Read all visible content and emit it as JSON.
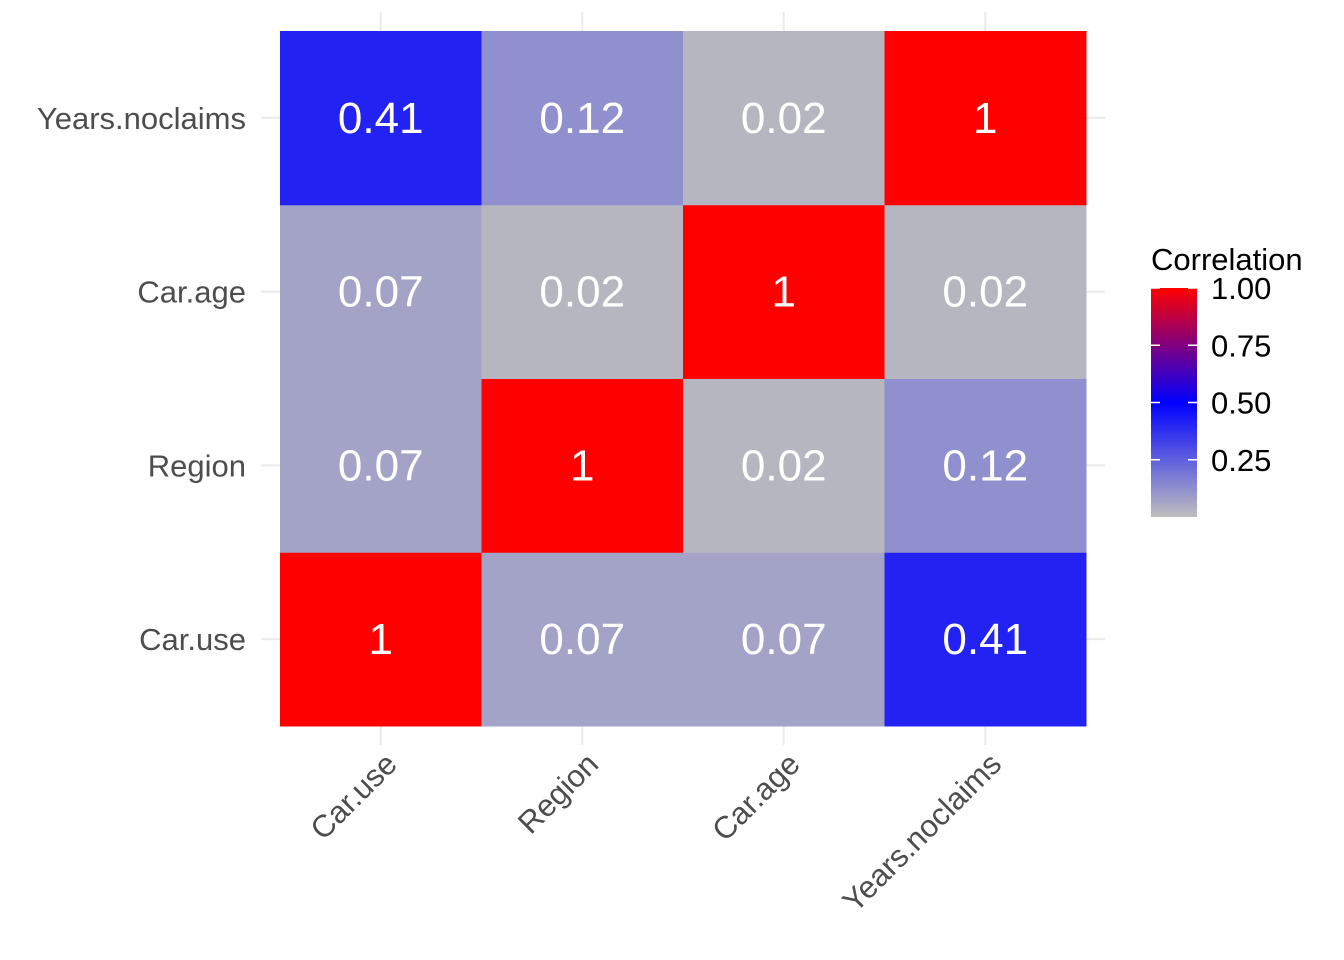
{
  "chart_data": {
    "type": "heatmap",
    "x_categories": [
      "Car.use",
      "Region",
      "Car.age",
      "Years.noclaims"
    ],
    "y_categories": [
      "Car.use",
      "Region",
      "Car.age",
      "Years.noclaims"
    ],
    "matrix": [
      [
        1,
        0.07,
        0.07,
        0.41
      ],
      [
        0.07,
        1,
        0.02,
        0.12
      ],
      [
        0.07,
        0.02,
        1,
        0.02
      ],
      [
        0.41,
        0.12,
        0.02,
        1
      ]
    ],
    "cell_labels": [
      [
        "1",
        "0.07",
        "0.07",
        "0.41"
      ],
      [
        "0.07",
        "1",
        "0.02",
        "0.12"
      ],
      [
        "0.07",
        "0.02",
        "1",
        "0.02"
      ],
      [
        "0.41",
        "0.12",
        "0.02",
        "1"
      ]
    ],
    "legend": {
      "title": "Correlation",
      "ticks": [
        1.0,
        0.75,
        0.5,
        0.25
      ],
      "tick_labels": [
        "1.00",
        "0.75",
        "0.50",
        "0.25"
      ],
      "range": [
        0,
        1
      ],
      "position": "right"
    },
    "color_scale": {
      "low": "#bebebe",
      "mid": "#0000ff",
      "high": "#ff0000",
      "midpoint": 0.5
    },
    "xlabel": "",
    "ylabel": "",
    "grid": true
  }
}
